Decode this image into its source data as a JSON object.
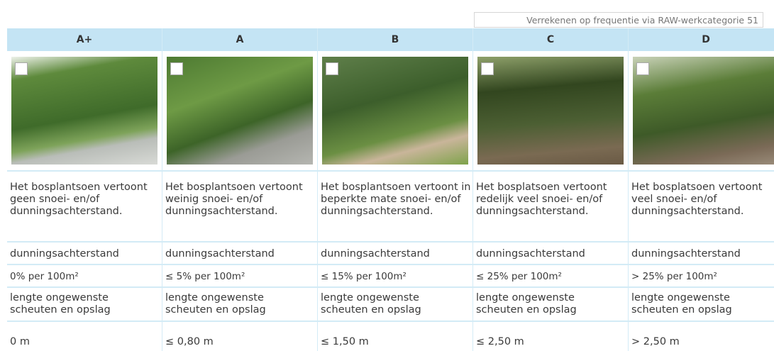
{
  "note": "Verrekenen op frequentie via RAW-werkcategorie 51",
  "columns": [
    {
      "header": "A+",
      "description": "Het bosplantsoen vertoont geen snoei- en/of dunningsachterstand.",
      "label1": "dunningsachterstand",
      "value1": "0% per 100m²",
      "label2": "lengte ongewenste scheuten en opslag",
      "value2": "0 m"
    },
    {
      "header": "A",
      "description": "Het bosplantsoen vertoont weinig snoei- en/of dunningsachterstand.",
      "label1": "dunningsachterstand",
      "value1": "≤ 5% per 100m²",
      "label2": "lengte ongewenste scheuten en opslag",
      "value2": "≤ 0,80 m"
    },
    {
      "header": "B",
      "description": "Het bosplantsoen vertoont in beperkte mate snoei- en/of dunningsachterstand.",
      "label1": "dunningsachterstand",
      "value1": "≤ 15% per 100m²",
      "label2": "lengte ongewenste scheuten en opslag",
      "value2": "≤ 1,50 m"
    },
    {
      "header": "C",
      "description": "Het bosplatsoen vertoont redelijk veel snoei- en/of dunningsachterstand.",
      "label1": "dunningsachterstand",
      "value1": "≤ 25% per 100m²",
      "label2": "lengte ongewenste scheuten en opslag",
      "value2": "≤ 2,50 m"
    },
    {
      "header": "D",
      "description": "Het bosplatsoen vertoont veel snoei- en/of dunningsachterstand.",
      "label1": "dunningsachterstand",
      "value1": "> 25% per 100m²",
      "label2": "lengte ongewenste scheuten en opslag",
      "value2": "> 2,50 m"
    }
  ]
}
